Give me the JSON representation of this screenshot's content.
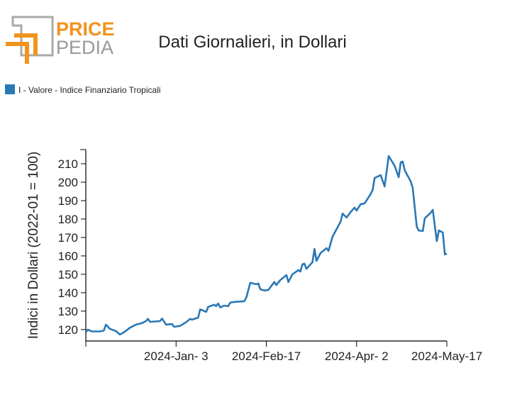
{
  "logo": {
    "top": "PRICE",
    "bottom": "PEDIA"
  },
  "chart_data": {
    "type": "line",
    "title": "Dati Giornalieri, in Dollari",
    "y_label": "Indici in Dollari (2022-01 = 100)",
    "xlim": [
      "2023-11-19",
      "2024-05-17"
    ],
    "xticks": [
      {
        "value": "2024-01-03",
        "label": "2024-Jan- 3"
      },
      {
        "value": "2024-02-17",
        "label": "2024-Feb-17"
      },
      {
        "value": "2024-04-02",
        "label": "2024-Apr- 2"
      },
      {
        "value": "2024-05-17",
        "label": "2024-May-17"
      }
    ],
    "ylim": [
      113.8,
      217.7
    ],
    "yticks": [
      120,
      130,
      140,
      150,
      160,
      170,
      180,
      190,
      200,
      210
    ],
    "x": [
      "2023-11-19",
      "2023-11-20",
      "2023-11-22",
      "2023-11-26",
      "2023-11-28",
      "2023-11-29",
      "2023-12-01",
      "2023-12-04",
      "2023-12-06",
      "2023-12-08",
      "2023-12-11",
      "2023-12-14",
      "2023-12-17",
      "2023-12-19",
      "2023-12-20",
      "2023-12-21",
      "2023-12-26",
      "2023-12-27",
      "2023-12-29",
      "2024-01-01",
      "2024-01-02",
      "2024-01-05",
      "2024-01-08",
      "2024-01-10",
      "2024-01-11",
      "2024-01-14",
      "2024-01-15",
      "2024-01-18",
      "2024-01-19",
      "2024-01-22",
      "2024-01-23",
      "2024-01-24",
      "2024-01-25",
      "2024-01-27",
      "2024-01-29",
      "2024-01-30",
      "2024-02-01",
      "2024-02-06",
      "2024-02-07",
      "2024-02-09",
      "2024-02-12",
      "2024-02-13",
      "2024-02-14",
      "2024-02-16",
      "2024-02-18",
      "2024-02-21",
      "2024-02-22",
      "2024-02-24",
      "2024-02-27",
      "2024-02-28",
      "2024-03-01",
      "2024-03-04",
      "2024-03-05",
      "2024-03-06",
      "2024-03-07",
      "2024-03-08",
      "2024-03-11",
      "2024-03-12",
      "2024-03-13",
      "2024-03-15",
      "2024-03-18",
      "2024-03-19",
      "2024-03-21",
      "2024-03-24",
      "2024-03-25",
      "2024-03-26",
      "2024-03-28",
      "2024-03-30",
      "2024-04-01",
      "2024-04-02",
      "2024-04-04",
      "2024-04-06",
      "2024-04-09",
      "2024-04-10",
      "2024-04-11",
      "2024-04-14",
      "2024-04-16",
      "2024-04-18",
      "2024-04-21",
      "2024-04-23",
      "2024-04-24",
      "2024-04-25",
      "2024-04-26",
      "2024-04-29",
      "2024-04-30",
      "2024-05-02",
      "2024-05-03",
      "2024-05-05",
      "2024-05-06",
      "2024-05-09",
      "2024-05-10",
      "2024-05-11",
      "2024-05-12",
      "2024-05-13",
      "2024-05-15",
      "2024-05-16",
      "2024-05-17"
    ],
    "series": [
      {
        "name": "I - Valore - Indice Finanziario Tropicali",
        "color": "#2a78b5",
        "values": [
          118.5,
          120,
          119,
          119,
          119.5,
          122.7,
          120.4,
          119.2,
          117.3,
          118.5,
          121,
          122.7,
          123.5,
          124.6,
          125.8,
          124.2,
          124.6,
          126,
          122.7,
          123,
          121.5,
          122,
          124,
          125.8,
          125.4,
          126.5,
          131,
          129.6,
          132.3,
          133.5,
          132.7,
          134.2,
          132,
          133,
          132.7,
          134.6,
          135,
          135.4,
          137.3,
          145.4,
          144.6,
          145,
          141.9,
          141.2,
          141.5,
          145.8,
          144.2,
          146.9,
          149.6,
          145.8,
          150,
          152.3,
          151.5,
          155.4,
          155.8,
          153,
          156.5,
          163.8,
          157.3,
          161.5,
          164.2,
          162.7,
          170.4,
          176.5,
          178.5,
          183,
          180.8,
          183.8,
          186.2,
          184.6,
          188,
          188.5,
          193.5,
          195.8,
          202.3,
          203.8,
          197.7,
          214.2,
          208.8,
          202.7,
          210.8,
          211.2,
          206.5,
          200.4,
          196.9,
          175.8,
          173.8,
          173.5,
          180.4,
          183.5,
          185,
          176.5,
          168,
          173.8,
          172.7,
          160.8,
          161.2
        ]
      }
    ]
  }
}
